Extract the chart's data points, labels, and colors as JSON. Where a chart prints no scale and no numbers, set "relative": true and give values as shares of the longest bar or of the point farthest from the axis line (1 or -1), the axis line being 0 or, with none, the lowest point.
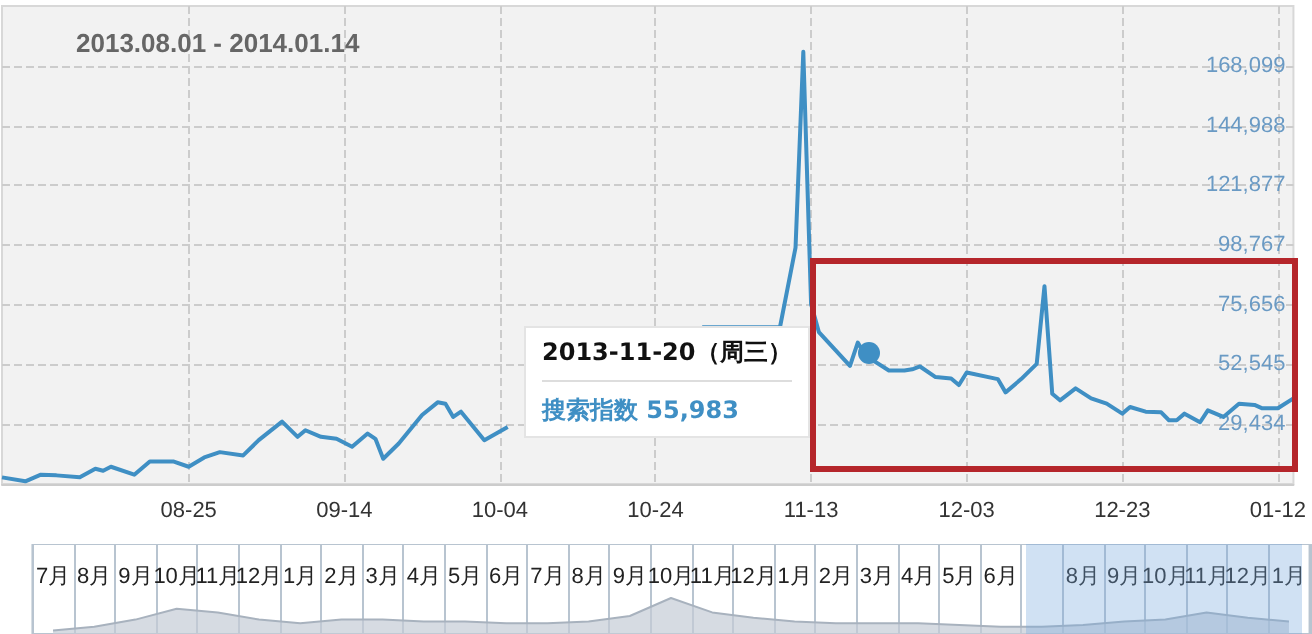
{
  "chart_data": [
    {
      "type": "line",
      "title": "2013.08.01 - 2014.01.14",
      "color": "#3f8fc4",
      "marker": "none",
      "line_style": "solid",
      "grid": true,
      "x": [
        "2013-08-01",
        "2013-08-04",
        "2013-08-06",
        "2013-08-08",
        "2013-08-11",
        "2013-08-13",
        "2013-08-14",
        "2013-08-15",
        "2013-08-18",
        "2013-08-20",
        "2013-08-23",
        "2013-08-25",
        "2013-08-27",
        "2013-08-29",
        "2013-09-01",
        "2013-09-03",
        "2013-09-06",
        "2013-09-08",
        "2013-09-09",
        "2013-09-11",
        "2013-09-13",
        "2013-09-15",
        "2013-09-17",
        "2013-09-18",
        "2013-09-19",
        "2013-09-21",
        "2013-09-24",
        "2013-09-26",
        "2013-09-27",
        "2013-09-28",
        "2013-09-29",
        "2013-10-02",
        "2013-10-05",
        "2013-10-08",
        "2013-10-20",
        "2013-10-30",
        "2013-11-04",
        "2013-11-09",
        "2013-11-11",
        "2013-11-12",
        "2013-11-13",
        "2013-11-14",
        "2013-11-18",
        "2013-11-19",
        "2013-11-20",
        "2013-11-23",
        "2013-11-25",
        "2013-11-26",
        "2013-11-27",
        "2013-11-29",
        "2013-12-01",
        "2013-12-02",
        "2013-12-03",
        "2013-12-07",
        "2013-12-08",
        "2013-12-10",
        "2013-12-12",
        "2013-12-13",
        "2013-12-14",
        "2013-12-15",
        "2013-12-17",
        "2013-12-19",
        "2013-12-21",
        "2013-12-23",
        "2013-12-24",
        "2013-12-26",
        "2013-12-28",
        "2013-12-29",
        "2013-12-30",
        "2013-12-31",
        "2014-01-02",
        "2014-01-03",
        "2014-01-05",
        "2014-01-07",
        "2014-01-09",
        "2014-01-10",
        "2014-01-12",
        "2014-01-14"
      ],
      "values": [
        8890,
        7350,
        9920,
        9660,
        8890,
        12230,
        11460,
        13000,
        9920,
        15050,
        15050,
        13000,
        16600,
        18650,
        17370,
        23270,
        30460,
        24560,
        27120,
        24560,
        23790,
        20700,
        25840,
        23790,
        16080,
        21990,
        33030,
        37910,
        37400,
        32260,
        34310,
        23270,
        28410,
        null,
        null,
        66950,
        66950,
        66950,
        97770,
        173500,
        75890,
        65100,
        52010,
        61020,
        55983,
        50240,
        50240,
        50700,
        51780,
        47670,
        47160,
        44590,
        49470,
        46900,
        41760,
        46900,
        52790,
        82830,
        41220,
        38680,
        43300,
        39450,
        37390,
        33540,
        36120,
        34310,
        34060,
        30980,
        30980,
        33540,
        30200,
        34830,
        32270,
        37390,
        36900,
        35600,
        35600,
        39450
      ],
      "xlim": [
        "2013-08-01",
        "2014-01-14"
      ],
      "xticks": [
        {
          "value": "2013-08-25",
          "label": "08-25"
        },
        {
          "value": "2013-09-14",
          "label": "09-14"
        },
        {
          "value": "2013-10-04",
          "label": "10-04"
        },
        {
          "value": "2013-10-24",
          "label": "10-24"
        },
        {
          "value": "2013-11-13",
          "label": "11-13"
        },
        {
          "value": "2013-12-03",
          "label": "12-03"
        },
        {
          "value": "2013-12-23",
          "label": "12-23"
        },
        {
          "value": "2014-01-12",
          "label": "01-12"
        }
      ],
      "ylim": [
        6323,
        191210
      ],
      "yticks": [
        {
          "value": 29434,
          "label": "29,434"
        },
        {
          "value": 52545,
          "label": "52,545"
        },
        {
          "value": 75656,
          "label": "75,656"
        },
        {
          "value": 98767,
          "label": "98,767"
        },
        {
          "value": 121877,
          "label": "121,877"
        },
        {
          "value": 144988,
          "label": "144,988"
        },
        {
          "value": 168099,
          "label": "168,099"
        }
      ],
      "annotations": [
        "2013-11-20（周三）",
        "搜索指数 55,983"
      ]
    },
    {
      "type": "area",
      "relative": true,
      "color": "#c5ccd6",
      "grid": "x",
      "categories": [
        "7月",
        "8月",
        "9月",
        "10月",
        "11月",
        "12月",
        "1月",
        "2月",
        "3月",
        "4月",
        "5月",
        "6月",
        "7月",
        "8月",
        "9月",
        "10月",
        "11月",
        "12月",
        "1月",
        "2月",
        "3月",
        "4月",
        "5月",
        "6月",
        null,
        "8月",
        "9月",
        "10月",
        "11月",
        "12月",
        "1月"
      ],
      "values": [
        0.1,
        0.2,
        0.4,
        0.7,
        0.6,
        0.4,
        0.3,
        0.4,
        0.4,
        0.35,
        0.35,
        0.3,
        0.3,
        0.35,
        0.5,
        1,
        0.6,
        0.45,
        0.35,
        0.3,
        0.3,
        0.3,
        0.25,
        0.2,
        0.2,
        0.25,
        0.35,
        0.4,
        0.6,
        0.45,
        0.35
      ]
    }
  ]
}
